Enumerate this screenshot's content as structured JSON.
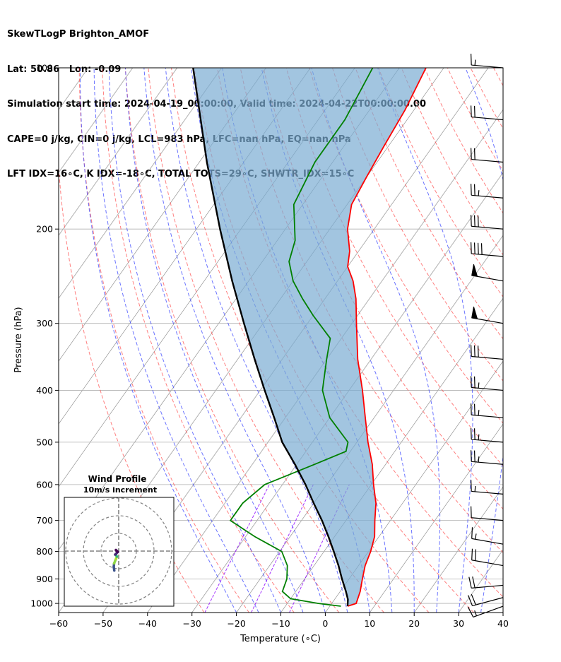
{
  "header": {
    "line1": "SkewTLogP Brighton_AMOF",
    "line2": "Lat: 50.86   Lon: -0.09",
    "line3": "Simulation start time: 2024-04-19_00:00:00, Valid time: 2024-04-22T00:00:00.00",
    "line4": "CAPE=0 j/kg, CIN=0 j/kg, LCL=983 hPa, LFC=nan hPa, EQ=nan hPa",
    "line5": "LFT IDX=16∘C, K IDX=-18∘C, TOTAL TOTS=29∘C, SHWTR_IDX=15∘C"
  },
  "chart_data": {
    "type": "line",
    "subtype": "skew-t log-p",
    "xlabel": "Temperature (∘C)",
    "ylabel": "Pressure (hPa)",
    "xlim": [
      -60,
      40
    ],
    "ylim_pressure": [
      1040,
      100
    ],
    "y_scale": "log",
    "x_ticks": [
      -60,
      -50,
      -40,
      -30,
      -20,
      -10,
      0,
      10,
      20,
      30,
      40
    ],
    "x_tick_labels": [
      "−60",
      "−50",
      "−40",
      "−30",
      "−20",
      "−10",
      "0",
      "10",
      "20",
      "30",
      "40"
    ],
    "y_ticks": [
      1000,
      900,
      800,
      700,
      600,
      500,
      400,
      300,
      200,
      100
    ],
    "y_tick_labels": [
      "1000",
      "900",
      "800",
      "700",
      "600",
      "500",
      "400",
      "300",
      "200",
      "100"
    ],
    "grid": true,
    "colors": {
      "temperature": "#ff0000",
      "dewpoint": "#008000",
      "parcel": "#000000",
      "cin_shade": "#7bacd3",
      "dry_adiabat": "#ff4a4a",
      "moist_adiabat": "#3a46ff",
      "mixing_ratio": "#8f00ff",
      "isotherm": "#a0a0a0"
    },
    "series": [
      {
        "role": "temperature",
        "points": [
          [
            1012,
            4
          ],
          [
            1000,
            5.5
          ],
          [
            950,
            4.5
          ],
          [
            900,
            3
          ],
          [
            850,
            1.5
          ],
          [
            800,
            0.5
          ],
          [
            750,
            -1
          ],
          [
            700,
            -3.5
          ],
          [
            650,
            -6
          ],
          [
            600,
            -9.5
          ],
          [
            550,
            -13
          ],
          [
            500,
            -17.5
          ],
          [
            450,
            -22
          ],
          [
            400,
            -27
          ],
          [
            350,
            -33
          ],
          [
            300,
            -39
          ],
          [
            270,
            -43
          ],
          [
            250,
            -46.5
          ],
          [
            235,
            -50
          ],
          [
            220,
            -52
          ],
          [
            200,
            -56
          ],
          [
            180,
            -59
          ],
          [
            160,
            -60
          ],
          [
            140,
            -61
          ],
          [
            120,
            -62
          ],
          [
            100,
            -64
          ]
        ]
      },
      {
        "role": "dewpoint",
        "points": [
          [
            1012,
            2.5
          ],
          [
            1000,
            -3
          ],
          [
            980,
            -10
          ],
          [
            950,
            -13
          ],
          [
            900,
            -14
          ],
          [
            850,
            -16
          ],
          [
            800,
            -19.5
          ],
          [
            750,
            -28
          ],
          [
            700,
            -36
          ],
          [
            650,
            -36
          ],
          [
            600,
            -34
          ],
          [
            550,
            -26
          ],
          [
            520,
            -21
          ],
          [
            500,
            -22
          ],
          [
            450,
            -30
          ],
          [
            400,
            -36
          ],
          [
            350,
            -40
          ],
          [
            320,
            -42.5
          ],
          [
            290,
            -50
          ],
          [
            270,
            -55
          ],
          [
            250,
            -60
          ],
          [
            230,
            -64
          ],
          [
            210,
            -66
          ],
          [
            180,
            -72
          ],
          [
            150,
            -74
          ],
          [
            125,
            -74
          ],
          [
            100,
            -76
          ]
        ]
      },
      {
        "role": "parcel",
        "points": [
          [
            1012,
            4
          ],
          [
            983,
            3
          ],
          [
            950,
            1.3
          ],
          [
            900,
            -1.6
          ],
          [
            850,
            -4.5
          ],
          [
            800,
            -7.8
          ],
          [
            750,
            -11.4
          ],
          [
            700,
            -15.4
          ],
          [
            650,
            -20
          ],
          [
            600,
            -24.8
          ],
          [
            550,
            -30.4
          ],
          [
            500,
            -36.8
          ],
          [
            450,
            -42.5
          ],
          [
            400,
            -49
          ],
          [
            350,
            -56.2
          ],
          [
            300,
            -64.3
          ],
          [
            250,
            -73.7
          ],
          [
            200,
            -84.7
          ],
          [
            150,
            -98.3
          ],
          [
            100,
            -116.4
          ]
        ]
      }
    ],
    "wind_barbs": [
      {
        "pressure": 1012,
        "speed_kt": 15,
        "direction_deg": 250
      },
      {
        "pressure": 975,
        "speed_kt": 20,
        "direction_deg": 255
      },
      {
        "pressure": 925,
        "speed_kt": 20,
        "direction_deg": 265
      },
      {
        "pressure": 850,
        "speed_kt": 20,
        "direction_deg": 280
      },
      {
        "pressure": 775,
        "speed_kt": 15,
        "direction_deg": 280
      },
      {
        "pressure": 700,
        "speed_kt": 10,
        "direction_deg": 275
      },
      {
        "pressure": 625,
        "speed_kt": 15,
        "direction_deg": 275
      },
      {
        "pressure": 550,
        "speed_kt": 25,
        "direction_deg": 275
      },
      {
        "pressure": 500,
        "speed_kt": 25,
        "direction_deg": 275
      },
      {
        "pressure": 450,
        "speed_kt": 25,
        "direction_deg": 275
      },
      {
        "pressure": 400,
        "speed_kt": 25,
        "direction_deg": 275
      },
      {
        "pressure": 350,
        "speed_kt": 30,
        "direction_deg": 275
      },
      {
        "pressure": 300,
        "speed_kt": 50,
        "direction_deg": 280
      },
      {
        "pressure": 250,
        "speed_kt": 50,
        "direction_deg": 280
      },
      {
        "pressure": 225,
        "speed_kt": 40,
        "direction_deg": 275
      },
      {
        "pressure": 200,
        "speed_kt": 30,
        "direction_deg": 275
      },
      {
        "pressure": 175,
        "speed_kt": 25,
        "direction_deg": 275
      },
      {
        "pressure": 150,
        "speed_kt": 20,
        "direction_deg": 275
      },
      {
        "pressure": 125,
        "speed_kt": 20,
        "direction_deg": 275
      },
      {
        "pressure": 100,
        "speed_kt": 15,
        "direction_deg": 275
      }
    ],
    "wind_profile_inset": {
      "title_line1": "Wind Profile",
      "title_line2": "10m/s increment",
      "ring_step_ms": 10,
      "rings": 3,
      "hodograph_uv": [
        [
          -2.5,
          -11
        ],
        [
          -2.8,
          -9
        ],
        [
          -2.6,
          -7
        ],
        [
          -2.0,
          -5.5
        ],
        [
          -1.5,
          -4.3
        ],
        [
          -1.0,
          -3.2
        ],
        [
          -1.5,
          -2.3
        ],
        [
          -2.0,
          -2.0
        ],
        [
          -1.5,
          -1.5
        ],
        [
          -0.5,
          -0.5
        ],
        [
          -1.0,
          0
        ],
        [
          -1.2,
          0.2
        ],
        [
          -1.4,
          0.4
        ],
        [
          -1.6,
          0.6
        ]
      ],
      "hodograph_colors": [
        "#3b528b",
        "#3b528b",
        "#8fd744",
        "#8fd744",
        "#b5de2b",
        "#35b779",
        "#35b779",
        "#482878",
        "#482878",
        "#440154",
        "#440154",
        "#440154",
        "#440154",
        "#440154"
      ]
    }
  }
}
